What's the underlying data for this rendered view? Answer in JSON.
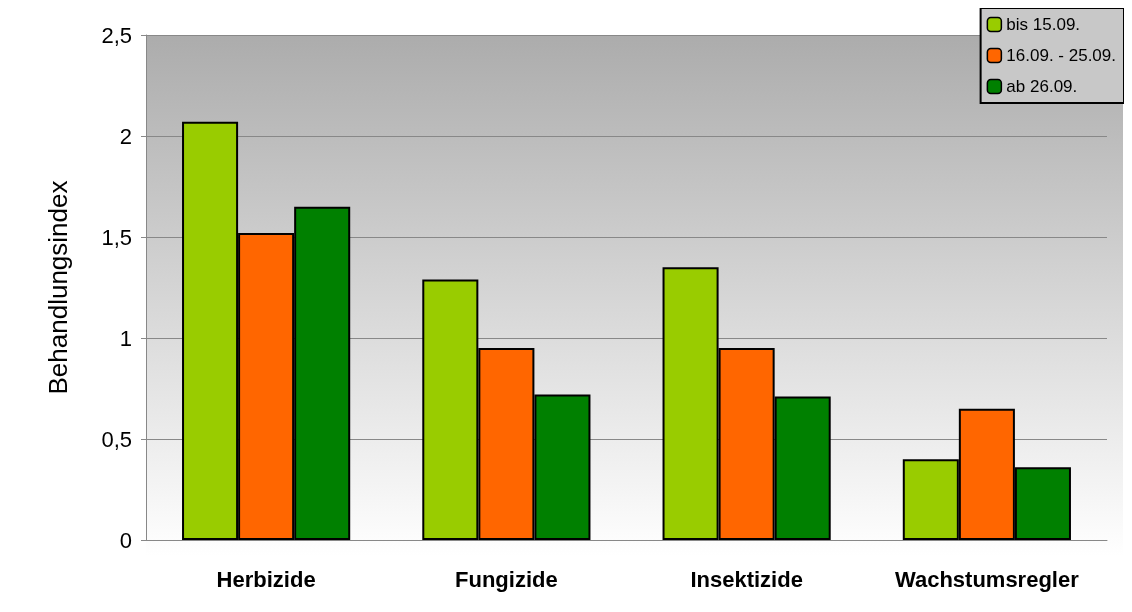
{
  "chart_data": {
    "type": "bar",
    "ylabel": "Behandlungsindex",
    "categories": [
      "Herbizide",
      "Fungizide",
      "Insektizide",
      "Wachstumsregler"
    ],
    "series": [
      {
        "name": "bis 15.09.",
        "color": "#99cc00",
        "values": [
          2.07,
          1.29,
          1.35,
          0.4
        ]
      },
      {
        "name": "16.09. - 25.09.",
        "color": "#ff6600",
        "values": [
          1.52,
          0.95,
          0.95,
          0.65
        ]
      },
      {
        "name": "ab 26.09.",
        "color": "#008000",
        "values": [
          1.65,
          0.72,
          0.71,
          0.36
        ]
      }
    ],
    "ylim": [
      0,
      2.5
    ],
    "yticks": [
      0,
      {
        "value": 0.5,
        "label": "0,5"
      },
      1,
      {
        "value": 1.5,
        "label": "1,5"
      },
      2,
      {
        "value": 2.5,
        "label": "2,5"
      }
    ],
    "grid": "y",
    "legend": "top right"
  }
}
